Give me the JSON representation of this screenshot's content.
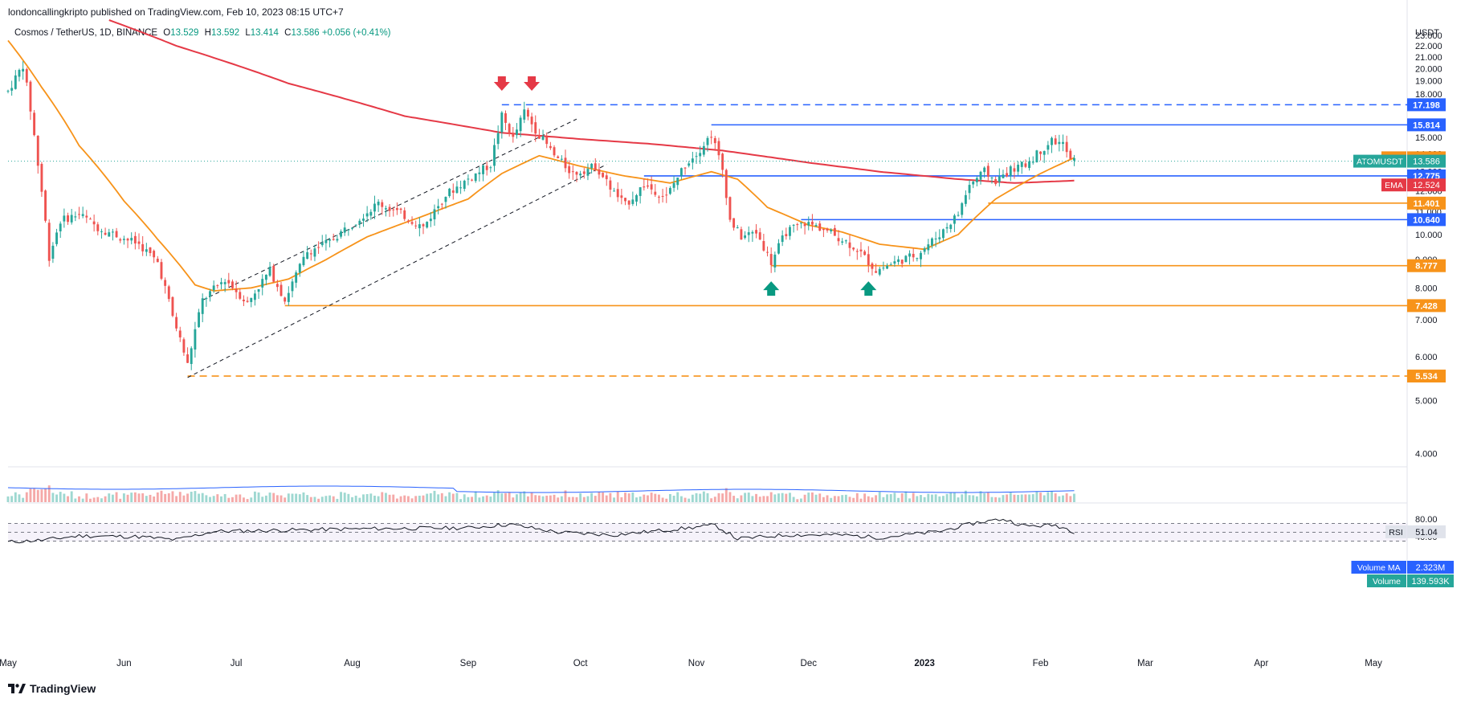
{
  "header": {
    "published": "londoncallingkripto published on TradingView.com, Feb 10, 2023 08:15 UTC+7",
    "symbol": "Cosmos / TetherUS, 1D, BINANCE",
    "o_label": "O",
    "o": "13.529",
    "h_label": "H",
    "h": "13.592",
    "l_label": "L",
    "l": "13.414",
    "c_label": "C",
    "c": "13.586",
    "change": "+0.056 (+0.41%)"
  },
  "footer": {
    "brand": "TradingView",
    "logo": "tradingview-logo-icon"
  },
  "colors": {
    "up": "#26a69a",
    "down": "#ef5350",
    "ema_fast": "#f7931a",
    "ema_slow": "#e53946",
    "blue": "#2962ff",
    "orange": "#f7931a",
    "rsi": "#7e57c2"
  },
  "chart_data": {
    "type": "candlestick",
    "symbol": "ATOMUSDT",
    "currency_label": "USDT",
    "y_scale": "log",
    "ylim": [
      3.8,
      24.5
    ],
    "y_ticks": [
      "23.000",
      "22.000",
      "21.000",
      "20.000",
      "19.000",
      "18.000",
      "17.000",
      "16.000",
      "15.000",
      "14.000",
      "13.000",
      "12.000",
      "11.000",
      "10.000",
      "9.000",
      "8.000",
      "7.000",
      "6.000",
      "5.000",
      "4.000"
    ],
    "x_ticks": [
      "May",
      "Jun",
      "Jul",
      "Aug",
      "Sep",
      "Oct",
      "Nov",
      "Dec",
      "2023",
      "Feb",
      "Mar",
      "Apr",
      "May"
    ],
    "x_range": [
      "2022-05-01",
      "2023-05-10"
    ],
    "candles_end": "2023-02-10",
    "price_anchors": [
      [
        "2022-05-01",
        18.2
      ],
      [
        "2022-05-05",
        20.3
      ],
      [
        "2022-05-09",
        13.4
      ],
      [
        "2022-05-12",
        9.1
      ],
      [
        "2022-05-15",
        10.6
      ],
      [
        "2022-05-20",
        10.9
      ],
      [
        "2022-05-25",
        10.3
      ],
      [
        "2022-05-31",
        9.9
      ],
      [
        "2022-06-05",
        9.6
      ],
      [
        "2022-06-10",
        8.9
      ],
      [
        "2022-06-14",
        7.1
      ],
      [
        "2022-06-18",
        5.8
      ],
      [
        "2022-06-22",
        7.6
      ],
      [
        "2022-06-28",
        8.3
      ],
      [
        "2022-07-04",
        7.5
      ],
      [
        "2022-07-10",
        8.6
      ],
      [
        "2022-07-14",
        7.6
      ],
      [
        "2022-07-20",
        9.3
      ],
      [
        "2022-07-26",
        9.7
      ],
      [
        "2022-08-02",
        10.6
      ],
      [
        "2022-08-08",
        11.4
      ],
      [
        "2022-08-14",
        10.9
      ],
      [
        "2022-08-20",
        10.3
      ],
      [
        "2022-08-26",
        11.8
      ],
      [
        "2022-09-01",
        12.6
      ],
      [
        "2022-09-07",
        13.4
      ],
      [
        "2022-09-10",
        16.4
      ],
      [
        "2022-09-13",
        14.9
      ],
      [
        "2022-09-16",
        16.7
      ],
      [
        "2022-09-19",
        15.5
      ],
      [
        "2022-09-24",
        13.9
      ],
      [
        "2022-09-29",
        12.9
      ],
      [
        "2022-10-05",
        13.3
      ],
      [
        "2022-10-10",
        11.9
      ],
      [
        "2022-10-13",
        11.3
      ],
      [
        "2022-10-18",
        12.3
      ],
      [
        "2022-10-24",
        11.7
      ],
      [
        "2022-10-29",
        13.4
      ],
      [
        "2022-11-02",
        14.3
      ],
      [
        "2022-11-05",
        15.2
      ],
      [
        "2022-11-08",
        13.1
      ],
      [
        "2022-11-10",
        10.6
      ],
      [
        "2022-11-13",
        9.9
      ],
      [
        "2022-11-17",
        10.1
      ],
      [
        "2022-11-21",
        8.9
      ],
      [
        "2022-11-25",
        10.1
      ],
      [
        "2022-11-30",
        10.5
      ],
      [
        "2022-12-04",
        10.3
      ],
      [
        "2022-12-10",
        9.8
      ],
      [
        "2022-12-14",
        9.4
      ],
      [
        "2022-12-19",
        8.6
      ],
      [
        "2022-12-24",
        8.9
      ],
      [
        "2022-12-30",
        9.2
      ],
      [
        "2023-01-05",
        10.0
      ],
      [
        "2023-01-10",
        10.9
      ],
      [
        "2023-01-13",
        12.3
      ],
      [
        "2023-01-17",
        13.0
      ],
      [
        "2023-01-20",
        12.5
      ],
      [
        "2023-01-24",
        13.1
      ],
      [
        "2023-01-28",
        13.4
      ],
      [
        "2023-02-01",
        14.2
      ],
      [
        "2023-02-04",
        14.8
      ],
      [
        "2023-02-07",
        14.6
      ],
      [
        "2023-02-09",
        13.6
      ],
      [
        "2023-02-10",
        13.586
      ]
    ],
    "ema_fast_anchors": [
      [
        "2022-05-01",
        22.5
      ],
      [
        "2022-05-10",
        18.5
      ],
      [
        "2022-05-20",
        14.5
      ],
      [
        "2022-06-01",
        11.5
      ],
      [
        "2022-06-10",
        9.8
      ],
      [
        "2022-06-20",
        8.1
      ],
      [
        "2022-06-25",
        7.9
      ],
      [
        "2022-07-05",
        8.0
      ],
      [
        "2022-07-15",
        8.3
      ],
      [
        "2022-07-25",
        9.0
      ],
      [
        "2022-08-05",
        9.9
      ],
      [
        "2022-08-20",
        10.8
      ],
      [
        "2022-09-01",
        11.6
      ],
      [
        "2022-09-10",
        12.9
      ],
      [
        "2022-09-20",
        13.9
      ],
      [
        "2022-10-01",
        13.3
      ],
      [
        "2022-10-12",
        12.8
      ],
      [
        "2022-10-25",
        12.4
      ],
      [
        "2022-11-05",
        13.0
      ],
      [
        "2022-11-12",
        12.6
      ],
      [
        "2022-11-20",
        11.2
      ],
      [
        "2022-12-01",
        10.4
      ],
      [
        "2022-12-10",
        10.1
      ],
      [
        "2022-12-20",
        9.6
      ],
      [
        "2023-01-01",
        9.4
      ],
      [
        "2023-01-10",
        10.0
      ],
      [
        "2023-01-20",
        11.6
      ],
      [
        "2023-02-01",
        12.9
      ],
      [
        "2023-02-10",
        13.779
      ]
    ],
    "ema_slow_anchors": [
      [
        "2022-05-28",
        24.5
      ],
      [
        "2022-06-15",
        22.0
      ],
      [
        "2022-07-15",
        18.8
      ],
      [
        "2022-08-15",
        16.4
      ],
      [
        "2022-09-10",
        15.3
      ],
      [
        "2022-10-01",
        14.9
      ],
      [
        "2022-10-20",
        14.6
      ],
      [
        "2022-11-08",
        14.2
      ],
      [
        "2022-12-01",
        13.5
      ],
      [
        "2022-12-20",
        13.0
      ],
      [
        "2023-01-10",
        12.6
      ],
      [
        "2023-01-25",
        12.4
      ],
      [
        "2023-02-10",
        12.524
      ]
    ],
    "levels": [
      {
        "value": 17.198,
        "label": "17.198",
        "color": "#2962ff",
        "style": "dashed",
        "from": "2022-09-10"
      },
      {
        "value": 15.814,
        "label": "15.814",
        "color": "#2962ff",
        "style": "solid",
        "from": "2022-11-05"
      },
      {
        "value": 12.775,
        "label": "12.775",
        "color": "#2962ff",
        "style": "solid",
        "from": "2022-10-18"
      },
      {
        "value": 11.401,
        "label": "11.401",
        "color": "#f7931a",
        "style": "solid",
        "from": "2023-01-18"
      },
      {
        "value": 10.64,
        "label": "10.640",
        "color": "#2962ff",
        "style": "solid",
        "from": "2022-11-29"
      },
      {
        "value": 8.777,
        "label": "8.777",
        "color": "#f7931a",
        "style": "solid",
        "from": "2022-11-21"
      },
      {
        "value": 7.428,
        "label": "7.428",
        "color": "#f7931a",
        "style": "solid",
        "from": "2022-07-14"
      },
      {
        "value": 5.534,
        "label": "5.534",
        "color": "#f7931a",
        "style": "dashed",
        "from": "2022-06-18"
      }
    ],
    "channel": [
      {
        "from": [
          "2022-06-22",
          7.6
        ],
        "to": [
          "2022-09-30",
          16.2
        ]
      },
      {
        "from": [
          "2022-06-18",
          5.5
        ],
        "to": [
          "2022-10-08",
          13.4
        ]
      }
    ],
    "down_arrows": [
      [
        "2022-09-10",
        18.6
      ],
      [
        "2022-09-18",
        18.6
      ]
    ],
    "up_arrows": [
      [
        "2022-11-21",
        7.95
      ],
      [
        "2022-12-17",
        7.95
      ]
    ],
    "price_tags": [
      {
        "name": "EMA",
        "value": "13.779",
        "y": 13.779,
        "color": "#f7931a"
      },
      {
        "name": "ATOMUSDT",
        "value": "13.586",
        "y": 13.586,
        "color": "#26a69a"
      },
      {
        "name": "EMA",
        "value": "12.524",
        "y": 12.3,
        "color": "#e53946"
      }
    ],
    "volume": {
      "ma_label": "Volume MA",
      "ma_value": "2.323M",
      "label": "Volume",
      "value": "139.593K"
    },
    "rsi": {
      "label": "RSI",
      "value": "51.04",
      "ticks": [
        "80.00",
        "40.00"
      ],
      "band": [
        30,
        70
      ],
      "anchors": [
        [
          "2022-05-01",
          28
        ],
        [
          "2022-05-10",
          32
        ],
        [
          "2022-05-20",
          42
        ],
        [
          "2022-06-05",
          40
        ],
        [
          "2022-06-15",
          33
        ],
        [
          "2022-06-25",
          52
        ],
        [
          "2022-07-15",
          55
        ],
        [
          "2022-08-05",
          58
        ],
        [
          "2022-09-01",
          60
        ],
        [
          "2022-09-12",
          68
        ],
        [
          "2022-09-25",
          50
        ],
        [
          "2022-10-10",
          44
        ],
        [
          "2022-10-30",
          60
        ],
        [
          "2022-11-06",
          66
        ],
        [
          "2022-11-12",
          35
        ],
        [
          "2022-11-25",
          44
        ],
        [
          "2022-12-10",
          44
        ],
        [
          "2022-12-20",
          38
        ],
        [
          "2023-01-05",
          52
        ],
        [
          "2023-01-15",
          72
        ],
        [
          "2023-01-22",
          80
        ],
        [
          "2023-01-28",
          64
        ],
        [
          "2023-02-05",
          66
        ],
        [
          "2023-02-08",
          58
        ],
        [
          "2023-02-10",
          51
        ]
      ]
    }
  }
}
